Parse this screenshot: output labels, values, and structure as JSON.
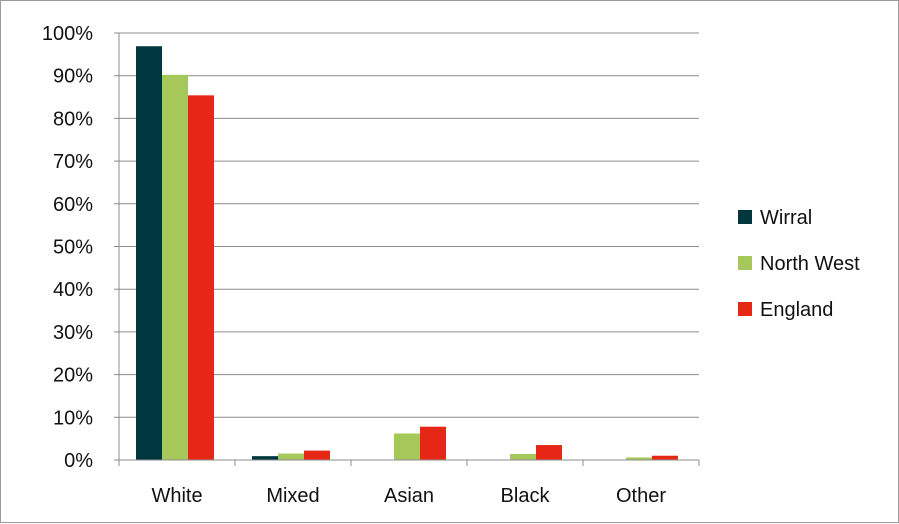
{
  "chart_data": {
    "type": "bar",
    "categories": [
      "White",
      "Mixed",
      "Asian",
      "Black",
      "Other"
    ],
    "series": [
      {
        "name": "Wirral",
        "color": "#00363d",
        "values": [
          96.9,
          0.9,
          0.0,
          0.0,
          0.0
        ]
      },
      {
        "name": "North West",
        "color": "#a6c85a",
        "values": [
          90.2,
          1.5,
          6.2,
          1.4,
          0.6
        ]
      },
      {
        "name": "England",
        "color": "#e62715",
        "values": [
          85.4,
          2.2,
          7.8,
          3.5,
          1.0
        ]
      }
    ],
    "ylim": [
      0,
      100
    ],
    "yticks": [
      "0%",
      "10%",
      "20%",
      "30%",
      "40%",
      "50%",
      "60%",
      "70%",
      "80%",
      "90%",
      "100%"
    ],
    "grid": true,
    "legend_position": "right"
  }
}
